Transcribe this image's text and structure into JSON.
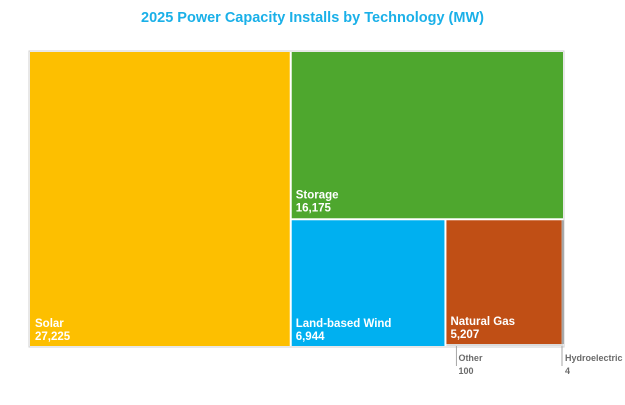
{
  "chart_data": {
    "type": "treemap",
    "title": "2025 Power Capacity Installs by Technology (MW)",
    "unit": "MW",
    "items": [
      {
        "name": "Solar",
        "value": 27225,
        "value_label": "27,225",
        "color": "#FDBF00"
      },
      {
        "name": "Storage",
        "value": 16175,
        "value_label": "16,175",
        "color": "#4EA72E"
      },
      {
        "name": "Land-based Wind",
        "value": 6944,
        "value_label": "6,944",
        "color": "#00B0F0"
      },
      {
        "name": "Natural Gas",
        "value": 5207,
        "value_label": "5,207",
        "color": "#C04F15"
      },
      {
        "name": "Other",
        "value": 100,
        "value_label": "100",
        "color": "#a6a6a6"
      },
      {
        "name": "Hydroelectric",
        "value": 4,
        "value_label": "4",
        "color": "#a6a6a6"
      }
    ]
  }
}
